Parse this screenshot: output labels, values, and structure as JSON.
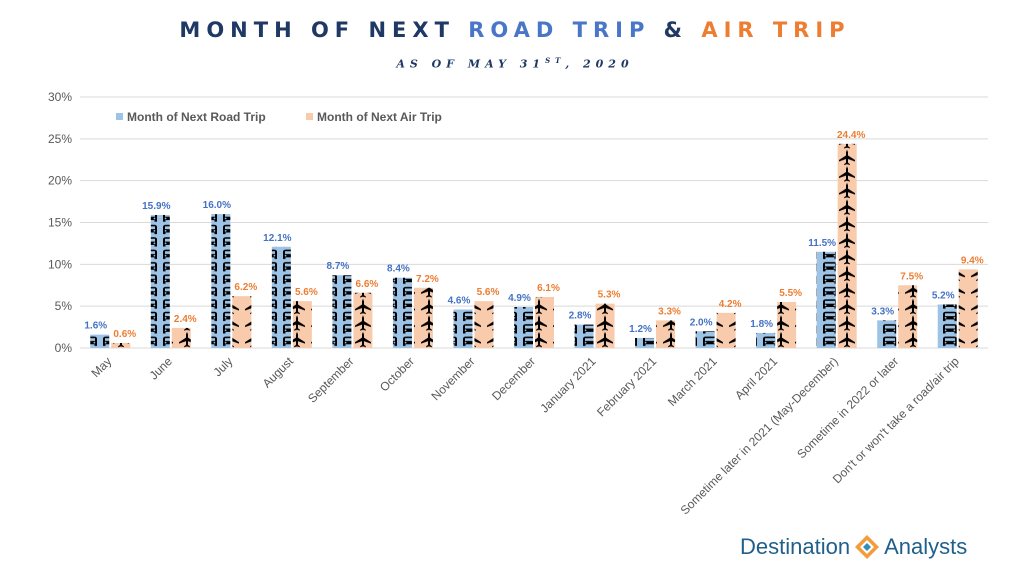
{
  "title": {
    "part1": "MONTH OF NEXT ",
    "part2": "ROAD TRIP",
    "part3": " & ",
    "part4": "AIR TRIP"
  },
  "subtitle": {
    "prefix": "AS OF MAY 31",
    "sup": "ST",
    "suffix": ", 2020"
  },
  "logo": {
    "word1": "Destination",
    "word2": "Analysts"
  },
  "colors": {
    "road": "#9dc3e6",
    "air": "#f8cbad",
    "road_label": "#4472c4",
    "air_label": "#ed7d31",
    "icon": "#000000",
    "grid": "#d9d9d9",
    "axis_text": "#595959"
  },
  "chart_data": {
    "type": "bar",
    "categories": [
      "May",
      "June",
      "July",
      "August",
      "September",
      "October",
      "November",
      "December",
      "January 2021",
      "February 2021",
      "March 2021",
      "April 2021",
      "Sometime later in 2021 (May-December)",
      "Sometime in 2022 or later",
      "Don't or won't take a road/air trip"
    ],
    "series": [
      {
        "name": "Month of Next Road Trip",
        "values": [
          1.6,
          15.9,
          16.0,
          12.1,
          8.7,
          8.4,
          4.6,
          4.9,
          2.8,
          1.2,
          2.0,
          1.8,
          11.5,
          3.3,
          5.2
        ],
        "labels": [
          "1.6%",
          "15.9%",
          "16.0%",
          "12.1%",
          "8.7%",
          "8.4%",
          "4.6%",
          "4.9%",
          "2.8%",
          "1.2%",
          "2.0%",
          "1.8%",
          "11.5%",
          "3.3%",
          "5.2%"
        ],
        "icon": "car-icon"
      },
      {
        "name": "Month of Next Air Trip",
        "values": [
          0.6,
          2.4,
          6.2,
          5.6,
          6.6,
          7.2,
          5.6,
          6.1,
          5.3,
          3.3,
          4.2,
          5.5,
          24.4,
          7.5,
          9.4
        ],
        "labels": [
          "0.6%",
          "2.4%",
          "6.2%",
          "5.6%",
          "6.6%",
          "7.2%",
          "5.6%",
          "6.1%",
          "5.3%",
          "3.3%",
          "4.2%",
          "5.5%",
          "24.4%",
          "7.5%",
          "9.4%"
        ],
        "icon": "airplane-icon"
      }
    ],
    "ylim": [
      0,
      30
    ],
    "yticks": [
      "0%",
      "5%",
      "10%",
      "15%",
      "20%",
      "25%",
      "30%"
    ],
    "ytick_values": [
      0,
      5,
      10,
      15,
      20,
      25,
      30
    ],
    "grid": true,
    "legend": "top-left"
  }
}
